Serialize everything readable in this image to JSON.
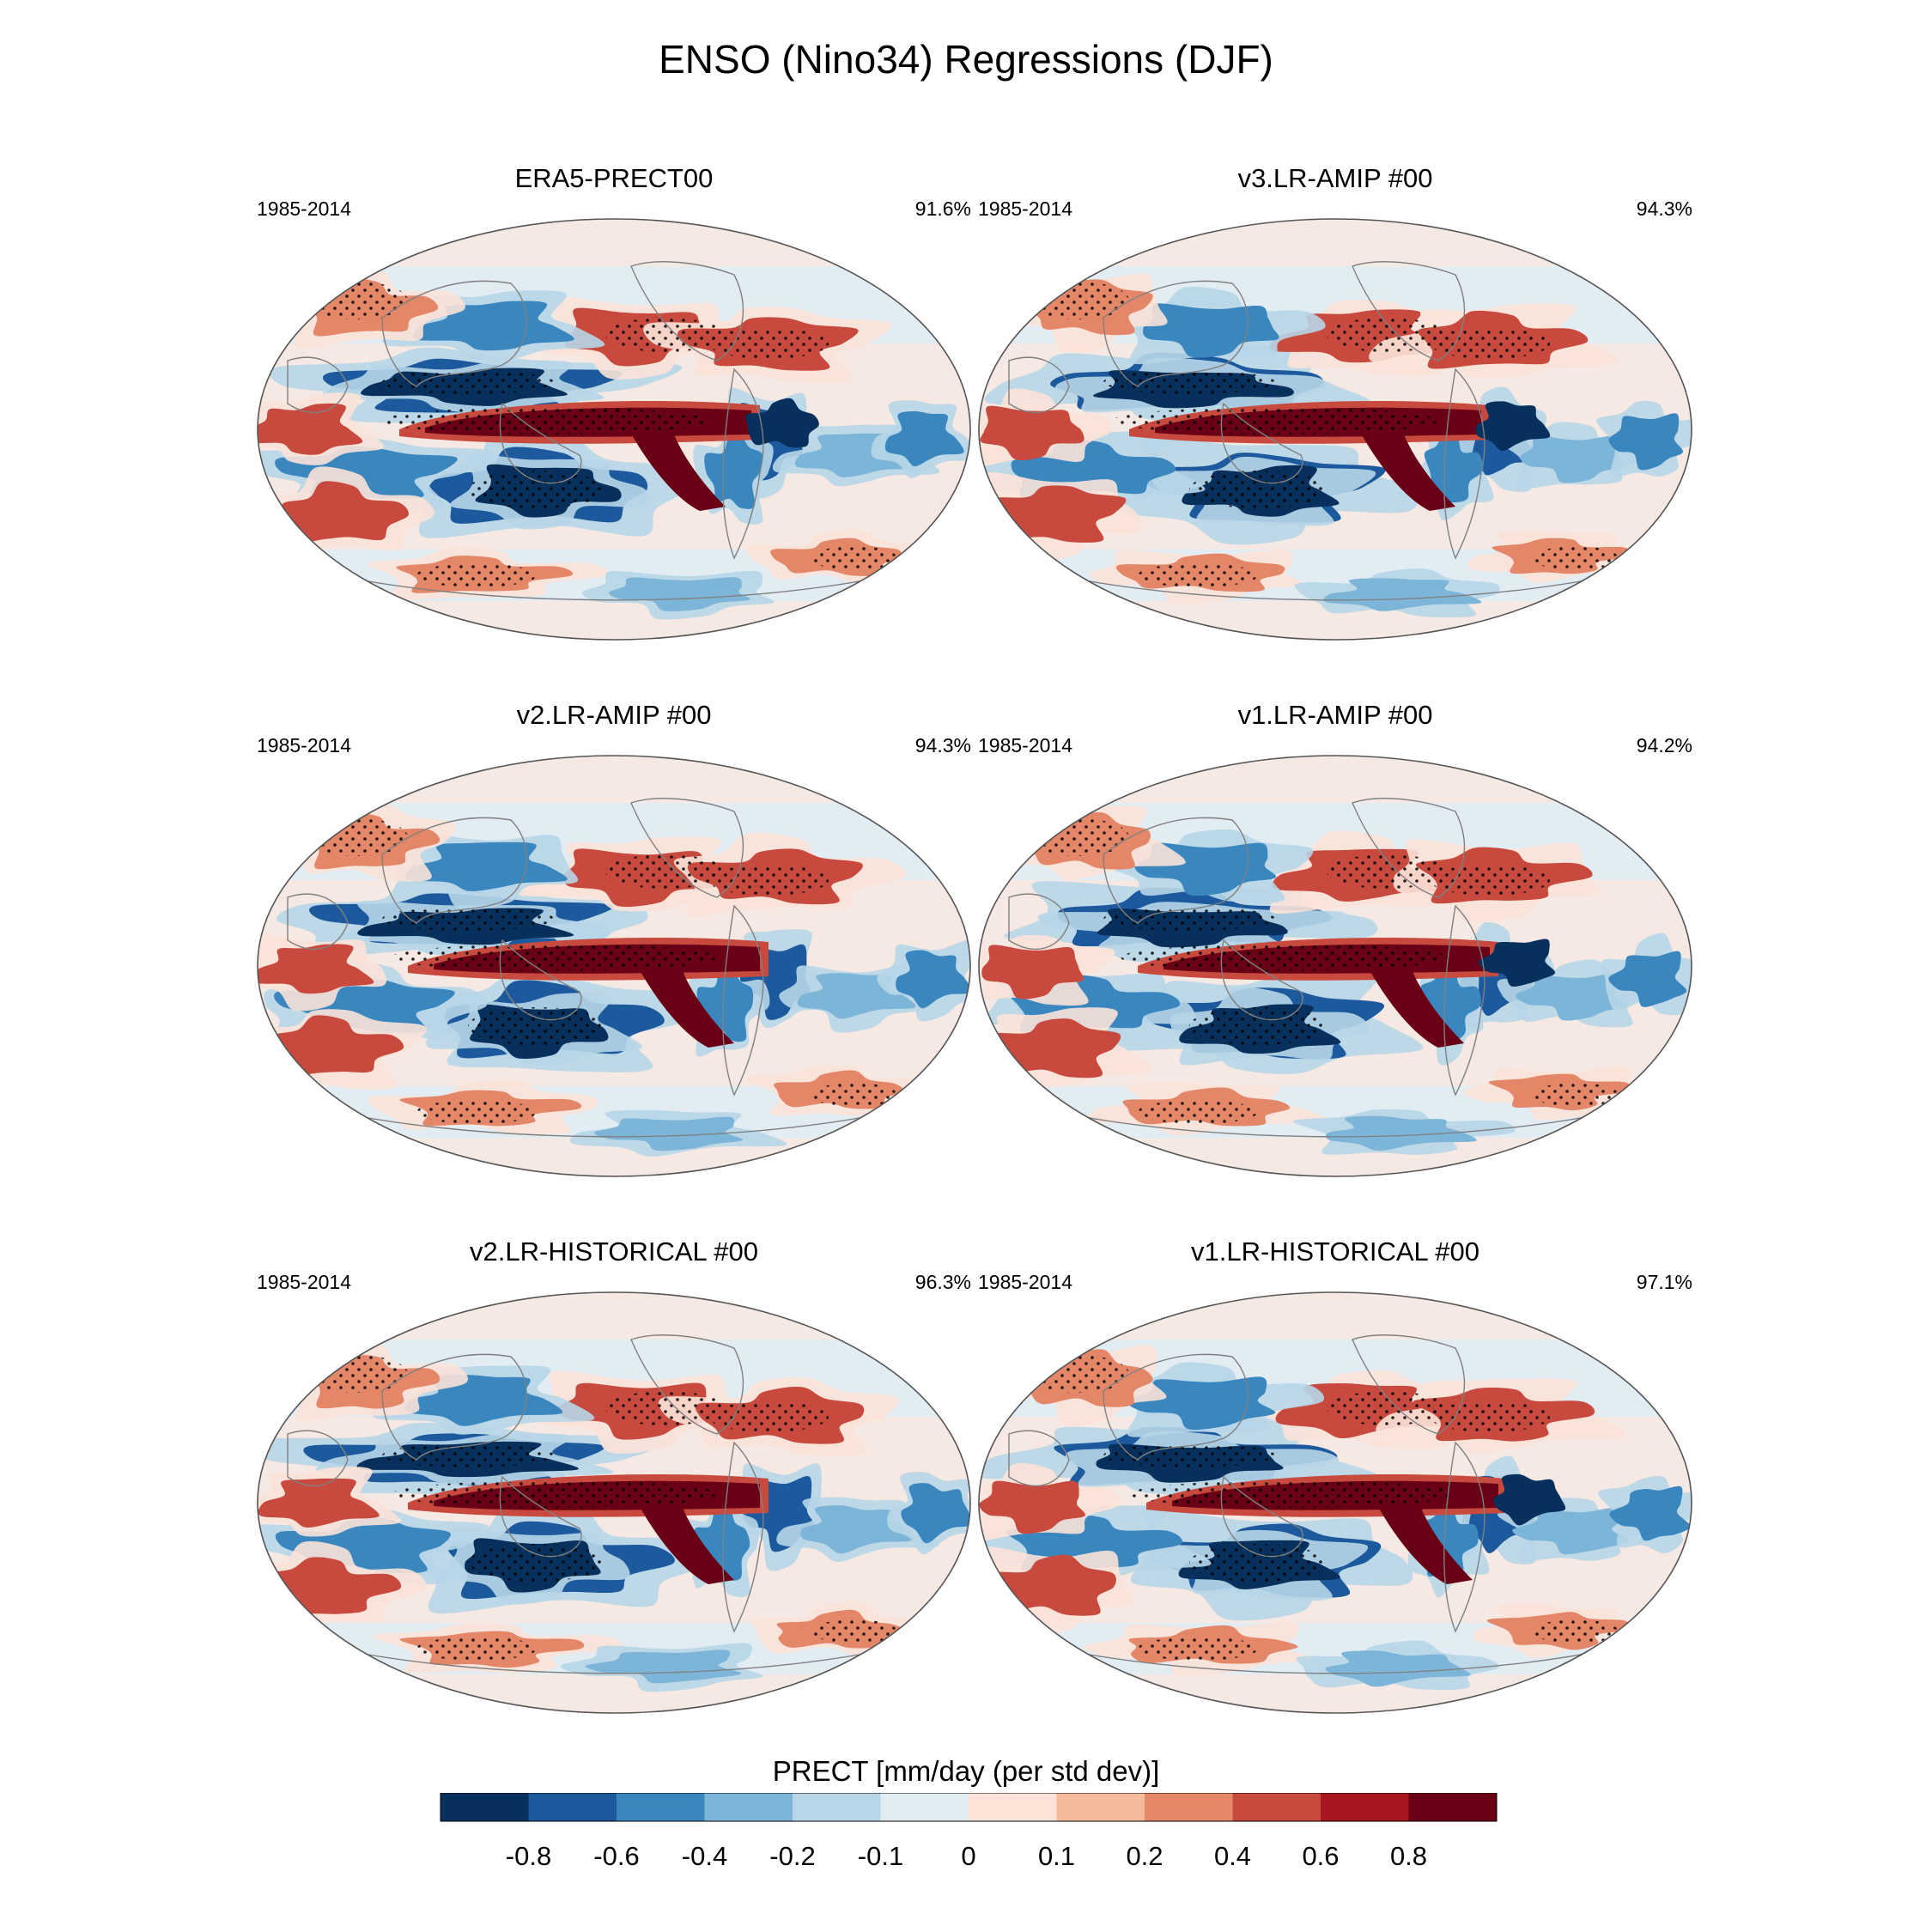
{
  "figure": {
    "title": "ENSO (Nino34) Regressions (DJF)"
  },
  "colors": {
    "levels": [
      "#08305d",
      "#1c5a9d",
      "#3a87bf",
      "#7db5d8",
      "#b7d6e8",
      "#e2ecf3",
      "#fbe3d8",
      "#f5b99c",
      "#e48769",
      "#c84a3e",
      "#a8161f",
      "#6a0015"
    ],
    "coast": "#808080",
    "outline": "#555555"
  },
  "panels": [
    {
      "id": "era5",
      "title": "ERA5-PRECT00",
      "period": "1985-2014",
      "score": "91.6%"
    },
    {
      "id": "v3amip",
      "title": "v3.LR-AMIP  #00",
      "period": "1985-2014",
      "score": "94.3%"
    },
    {
      "id": "v2amip",
      "title": "v2.LR-AMIP  #00",
      "period": "1985-2014",
      "score": "94.3%"
    },
    {
      "id": "v1amip",
      "title": "v1.LR-AMIP  #00",
      "period": "1985-2014",
      "score": "94.2%"
    },
    {
      "id": "v2hist",
      "title": "v2.LR-HISTORICAL  #00",
      "period": "1985-2014",
      "score": "96.3%"
    },
    {
      "id": "v1hist",
      "title": "v1.LR-HISTORICAL  #00",
      "period": "1985-2014",
      "score": "97.1%"
    }
  ],
  "colorbar": {
    "title": "PRECT [mm/day (per std dev)]",
    "ticks": [
      "-0.8",
      "-0.6",
      "-0.4",
      "-0.2",
      "-0.1",
      "0",
      "0.1",
      "0.2",
      "0.4",
      "0.6",
      "0.8"
    ]
  }
}
